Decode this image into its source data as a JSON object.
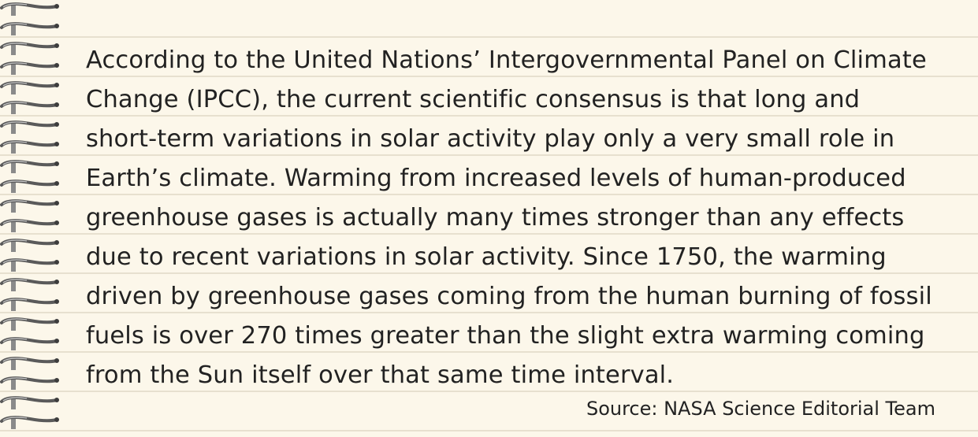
{
  "paragraph_lines": [
    "According to the United Nations’ Intergovernmental Panel on Climate",
    "Change (IPCC), the current scientific consensus is that long and",
    "short-term variations in solar activity play only a very small role in",
    "Earth’s climate. Warming from increased levels of human-produced",
    "greenhouse gases is actually many times stronger than any effects",
    "due to recent variations in solar activity. Since 1750, the warming",
    "driven by greenhouse gases coming from the human burning of fossil",
    "fuels is over 270 times greater than the slight extra warming coming",
    "from the Sun itself over that same time interval."
  ],
  "source": "Source: NASA Science Editorial Team",
  "colors": {
    "paper": "#fcf7ea",
    "rule_line": "#e7e0cf",
    "text": "#222222",
    "spiral_metal": "#5a5a5a"
  },
  "icons": {
    "binding": "spiral-binding-icon"
  }
}
